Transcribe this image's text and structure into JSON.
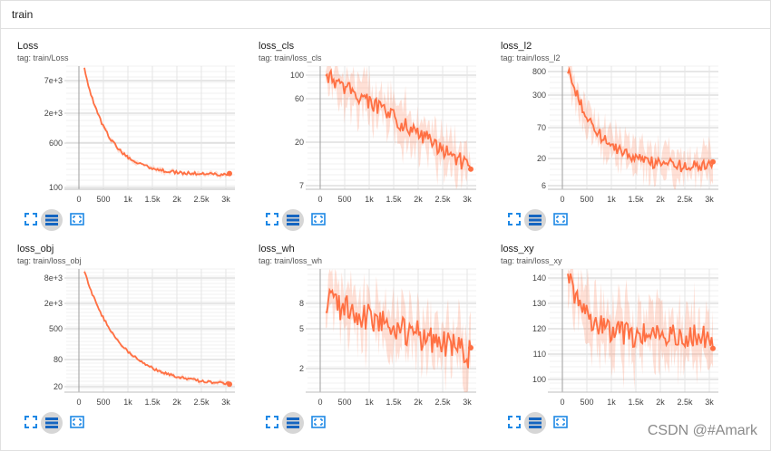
{
  "header": {
    "title": "train"
  },
  "accent_color": "#ff7043",
  "panels": [
    {
      "title": "Loss",
      "tag": "tag: train/Loss",
      "yticks": [
        "7e+3",
        "2e+3",
        "600",
        "100"
      ],
      "xticks": [
        "0",
        "500",
        "1k",
        "1.5k",
        "2k",
        "2.5k",
        "3k"
      ]
    },
    {
      "title": "loss_cls",
      "tag": "tag: train/loss_cls",
      "yticks": [
        "100",
        "60",
        "20",
        "7"
      ],
      "xticks": [
        "0",
        "500",
        "1k",
        "1.5k",
        "2k",
        "2.5k",
        "3k"
      ]
    },
    {
      "title": "loss_l2",
      "tag": "tag: train/loss_l2",
      "yticks": [
        "800",
        "300",
        "70",
        "20",
        "6"
      ],
      "xticks": [
        "0",
        "500",
        "1k",
        "1.5k",
        "2k",
        "2.5k",
        "3k"
      ]
    },
    {
      "title": "loss_obj",
      "tag": "tag: train/loss_obj",
      "yticks": [
        "8e+3",
        "2e+3",
        "500",
        "80",
        "20"
      ],
      "xticks": [
        "0",
        "500",
        "1k",
        "1.5k",
        "2k",
        "2.5k",
        "3k"
      ]
    },
    {
      "title": "loss_wh",
      "tag": "tag: train/loss_wh",
      "yticks": [
        "8",
        "5",
        "2"
      ],
      "xticks": [
        "0",
        "500",
        "1k",
        "1.5k",
        "2k",
        "2.5k",
        "3k"
      ]
    },
    {
      "title": "loss_xy",
      "tag": "tag: train/loss_xy",
      "yticks": [
        "140",
        "130",
        "120",
        "110",
        "100"
      ],
      "xticks": [
        "0",
        "500",
        "1k",
        "1.5k",
        "2k",
        "2.5k",
        "3k"
      ]
    }
  ],
  "toolbar_icons": [
    "fullscreen-icon",
    "lines-icon",
    "fit-domain-icon"
  ],
  "watermark": "CSDN @#Amark"
}
